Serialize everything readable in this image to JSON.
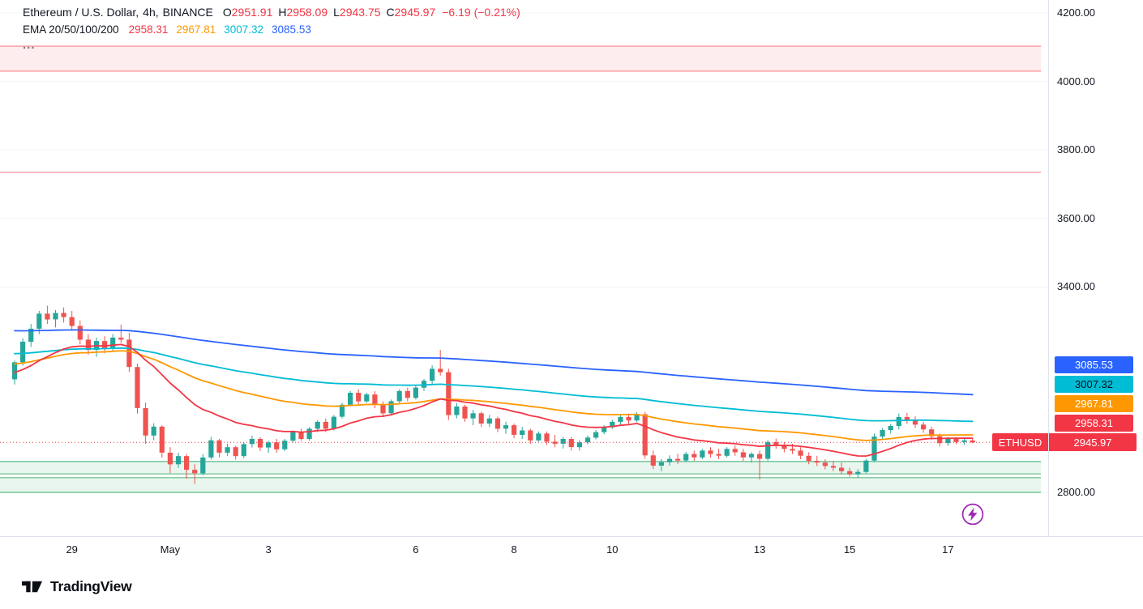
{
  "colors": {
    "up": "#26a69a",
    "down": "#ef5350",
    "grid": "#f2f4f8",
    "current_price_line": "#f23645",
    "red_zone_fill": "rgba(242,54,69,0.09)",
    "red_zone_border": "rgba(242,54,69,0.55)",
    "green_zone_fill": "rgba(38,166,94,0.10)",
    "green_zone_border": "rgba(38,166,94,0.75)",
    "axis_border": "#e0e3eb"
  },
  "legend": {
    "symbol": "Ethereum / U.S. Dollar,",
    "interval": "4h,",
    "exchange": "BINANCE",
    "ohlc": [
      {
        "label": "O",
        "value": "2951.91"
      },
      {
        "label": "H",
        "value": "2958.09"
      },
      {
        "label": "L",
        "value": "2943.75"
      },
      {
        "label": "C",
        "value": "2945.97"
      }
    ],
    "change": "−6.19 (−0.21%)",
    "ema_title": "EMA 20/50/100/200",
    "ema_values": [
      {
        "text": "2958.31",
        "color": "#f23645"
      },
      {
        "text": "2967.81",
        "color": "#ff9800"
      },
      {
        "text": "3007.32",
        "color": "#00bcd4"
      },
      {
        "text": "3085.53",
        "color": "#2962ff"
      }
    ],
    "more_label": "..."
  },
  "price_axis": {
    "ticks": [
      {
        "label": "4200.00",
        "price": 4200
      },
      {
        "label": "4000.00",
        "price": 4000
      },
      {
        "label": "3800.00",
        "price": 3800
      },
      {
        "label": "3600.00",
        "price": 3600
      },
      {
        "label": "3400.00",
        "price": 3400
      },
      {
        "label": "2800.00",
        "price": 2800
      }
    ],
    "ema_labels": [
      {
        "text": "3085.53",
        "price": 3085.53,
        "bg": "#2962ff",
        "fg": "#ffffff"
      },
      {
        "text": "3007.32",
        "price": 3007.32,
        "bg": "#00bcd4",
        "fg": "#0c0e15"
      },
      {
        "text": "2967.81",
        "price": 2967.81,
        "bg": "#ff9800",
        "fg": "#ffffff"
      },
      {
        "text": "2958.31",
        "price": 2958.31,
        "bg": "#f23645",
        "fg": "#ffffff"
      }
    ],
    "symbol_label": {
      "text": "ETHUSD",
      "value": "2945.97",
      "price": 2945.97,
      "bg": "#f23645",
      "fg": "#ffffff"
    }
  },
  "time_axis": {
    "labels": [
      {
        "text": "29",
        "i": 7
      },
      {
        "text": "May",
        "i": 19
      },
      {
        "text": "3",
        "i": 31
      },
      {
        "text": "6",
        "i": 49
      },
      {
        "text": "8",
        "i": 61
      },
      {
        "text": "10",
        "i": 73
      },
      {
        "text": "13",
        "i": 91
      },
      {
        "text": "15",
        "i": 102
      },
      {
        "text": "17",
        "i": 114
      }
    ]
  },
  "footer": {
    "brand": "TradingView",
    "logo_icon": "tradingview-logo"
  },
  "bolt": {
    "icon": "lightning-bolt-icon",
    "color": "#9c27b0"
  },
  "chart_data": {
    "type": "candlestick",
    "symbol": "ETHUSD",
    "description": "Ethereum / U.S. Dollar",
    "exchange": "BINANCE",
    "interval": "4h",
    "y_range_visible": [
      2760,
      4240
    ],
    "current_price": 2945.97,
    "levels": {
      "resistance_zone": {
        "from": 4030,
        "to": 4103
      },
      "resistance_line": 3735,
      "support_zone_upper": {
        "from": 2854,
        "to": 2890
      },
      "support_zone_lower": {
        "from": 2800,
        "to": 2843
      }
    },
    "emas": [
      {
        "period": 20,
        "seed": 3150,
        "end": 2958.31,
        "color": "#f23645"
      },
      {
        "period": 50,
        "seed": 3175,
        "end": 2967.81,
        "color": "#ff9800"
      },
      {
        "period": 100,
        "seed": 3205,
        "end": 3007.32,
        "color": "#00bcd4"
      },
      {
        "period": 200,
        "seed": 3272,
        "end": 3085.53,
        "color": "#2962ff"
      }
    ],
    "candles": [
      [
        3130,
        3185,
        3115,
        3180
      ],
      [
        3180,
        3250,
        3170,
        3240
      ],
      [
        3240,
        3292,
        3225,
        3278
      ],
      [
        3278,
        3330,
        3262,
        3322
      ],
      [
        3322,
        3345,
        3292,
        3305
      ],
      [
        3305,
        3332,
        3282,
        3324
      ],
      [
        3324,
        3340,
        3296,
        3312
      ],
      [
        3312,
        3330,
        3272,
        3286
      ],
      [
        3286,
        3302,
        3232,
        3246
      ],
      [
        3246,
        3262,
        3202,
        3216
      ],
      [
        3216,
        3252,
        3196,
        3242
      ],
      [
        3242,
        3256,
        3206,
        3222
      ],
      [
        3222,
        3262,
        3212,
        3252
      ],
      [
        3252,
        3290,
        3236,
        3246
      ],
      [
        3246,
        3266,
        3152,
        3166
      ],
      [
        3166,
        3176,
        3030,
        3046
      ],
      [
        3046,
        3062,
        2942,
        2966
      ],
      [
        2966,
        3002,
        2952,
        2992
      ],
      [
        2992,
        2996,
        2902,
        2916
      ],
      [
        2916,
        2932,
        2856,
        2882
      ],
      [
        2882,
        2916,
        2872,
        2906
      ],
      [
        2906,
        2912,
        2840,
        2866
      ],
      [
        2866,
        2882,
        2825,
        2856
      ],
      [
        2856,
        2912,
        2850,
        2902
      ],
      [
        2902,
        2962,
        2896,
        2952
      ],
      [
        2952,
        2956,
        2902,
        2916
      ],
      [
        2916,
        2942,
        2906,
        2932
      ],
      [
        2932,
        2936,
        2896,
        2906
      ],
      [
        2906,
        2946,
        2900,
        2941
      ],
      [
        2941,
        2966,
        2931,
        2956
      ],
      [
        2956,
        2961,
        2921,
        2931
      ],
      [
        2931,
        2951,
        2916,
        2946
      ],
      [
        2946,
        2956,
        2916,
        2926
      ],
      [
        2926,
        2956,
        2921,
        2951
      ],
      [
        2951,
        2981,
        2946,
        2976
      ],
      [
        2976,
        2986,
        2951,
        2956
      ],
      [
        2956,
        2991,
        2951,
        2986
      ],
      [
        2986,
        3011,
        2976,
        3006
      ],
      [
        3006,
        3016,
        2976,
        2986
      ],
      [
        2986,
        3026,
        2981,
        3021
      ],
      [
        3021,
        3061,
        3016,
        3056
      ],
      [
        3056,
        3096,
        3051,
        3091
      ],
      [
        3091,
        3101,
        3056,
        3066
      ],
      [
        3066,
        3091,
        3061,
        3086
      ],
      [
        3086,
        3096,
        3046,
        3056
      ],
      [
        3056,
        3066,
        3021,
        3031
      ],
      [
        3031,
        3071,
        3026,
        3066
      ],
      [
        3066,
        3101,
        3061,
        3096
      ],
      [
        3096,
        3106,
        3066,
        3076
      ],
      [
        3076,
        3111,
        3071,
        3106
      ],
      [
        3106,
        3131,
        3096,
        3126
      ],
      [
        3126,
        3171,
        3116,
        3161
      ],
      [
        3161,
        3216,
        3141,
        3151
      ],
      [
        3151,
        3161,
        3011,
        3026
      ],
      [
        3026,
        3061,
        3016,
        3051
      ],
      [
        3051,
        3056,
        3006,
        3016
      ],
      [
        3016,
        3041,
        2996,
        3031
      ],
      [
        3031,
        3036,
        2991,
        3001
      ],
      [
        3001,
        3026,
        2991,
        3016
      ],
      [
        3016,
        3021,
        2976,
        2986
      ],
      [
        2986,
        3006,
        2971,
        2996
      ],
      [
        2996,
        3001,
        2958,
        2968
      ],
      [
        2968,
        2991,
        2956,
        2981
      ],
      [
        2981,
        2986,
        2942,
        2952
      ],
      [
        2952,
        2978,
        2948,
        2972
      ],
      [
        2972,
        2978,
        2938,
        2948
      ],
      [
        2948,
        2968,
        2932,
        2942
      ],
      [
        2942,
        2962,
        2928,
        2956
      ],
      [
        2956,
        2962,
        2922,
        2932
      ],
      [
        2932,
        2952,
        2922,
        2946
      ],
      [
        2946,
        2966,
        2940,
        2960
      ],
      [
        2960,
        2982,
        2955,
        2976
      ],
      [
        2976,
        2996,
        2970,
        2990
      ],
      [
        2990,
        3012,
        2985,
        3006
      ],
      [
        3006,
        3026,
        2996,
        3020
      ],
      [
        3020,
        3030,
        3000,
        3010
      ],
      [
        3010,
        3034,
        3005,
        3028
      ],
      [
        3028,
        3035,
        2898,
        2908
      ],
      [
        2908,
        2922,
        2868,
        2878
      ],
      [
        2878,
        2898,
        2862,
        2888
      ],
      [
        2888,
        2908,
        2878,
        2898
      ],
      [
        2898,
        2913,
        2883,
        2893
      ],
      [
        2893,
        2918,
        2888,
        2912
      ],
      [
        2912,
        2922,
        2892,
        2902
      ],
      [
        2902,
        2927,
        2897,
        2922
      ],
      [
        2922,
        2932,
        2902,
        2912
      ],
      [
        2912,
        2927,
        2897,
        2907
      ],
      [
        2907,
        2932,
        2902,
        2927
      ],
      [
        2927,
        2937,
        2907,
        2917
      ],
      [
        2917,
        2927,
        2892,
        2902
      ],
      [
        2902,
        2917,
        2887,
        2912
      ],
      [
        2912,
        2922,
        2838,
        2898
      ],
      [
        2898,
        2952,
        2893,
        2947
      ],
      [
        2947,
        2957,
        2927,
        2937
      ],
      [
        2937,
        2947,
        2917,
        2927
      ],
      [
        2927,
        2942,
        2912,
        2922
      ],
      [
        2922,
        2932,
        2897,
        2907
      ],
      [
        2907,
        2917,
        2882,
        2892
      ],
      [
        2892,
        2907,
        2877,
        2887
      ],
      [
        2887,
        2897,
        2867,
        2877
      ],
      [
        2877,
        2892,
        2862,
        2872
      ],
      [
        2872,
        2887,
        2852,
        2862
      ],
      [
        2862,
        2872,
        2846,
        2853
      ],
      [
        2853,
        2868,
        2843,
        2860
      ],
      [
        2860,
        2898,
        2856,
        2893
      ],
      [
        2893,
        2972,
        2888,
        2963
      ],
      [
        2963,
        2988,
        2955,
        2982
      ],
      [
        2982,
        3000,
        2972,
        2994
      ],
      [
        2994,
        3030,
        2984,
        3020
      ],
      [
        3020,
        3032,
        3000,
        3012
      ],
      [
        3012,
        3022,
        2988,
        2998
      ],
      [
        2998,
        3006,
        2974,
        2984
      ],
      [
        2984,
        2992,
        2954,
        2964
      ],
      [
        2964,
        2972,
        2934,
        2944
      ],
      [
        2944,
        2962,
        2936,
        2956
      ],
      [
        2956,
        2961,
        2941,
        2947
      ],
      [
        2947,
        2957,
        2939,
        2952
      ],
      [
        2951.91,
        2958.09,
        2943.75,
        2945.97
      ]
    ]
  }
}
